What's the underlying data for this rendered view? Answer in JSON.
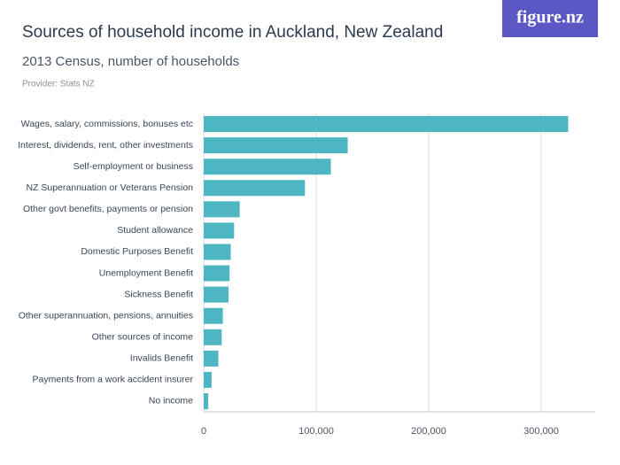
{
  "chart_data": {
    "type": "hbar",
    "title": "Sources of household income in Auckland, New Zealand",
    "subtitle": "2013 Census, number of households",
    "provider": "Provider: Stats NZ",
    "logo": "figure.nz",
    "categories": [
      "Wages, salary, commissions, bonuses etc",
      "Interest, dividends, rent, other investments",
      "Self-employment or business",
      "NZ Superannuation or Veterans Pension",
      "Other govt benefits, payments or pension",
      "Student allowance",
      "Domestic Purposes Benefit",
      "Unemployment Benefit",
      "Sickness Benefit",
      "Other superannuation, pensions, annuities",
      "Other sources of income",
      "Invalids Benefit",
      "Payments from a work accident insurer",
      "No income"
    ],
    "values": [
      324000,
      128000,
      113000,
      90000,
      32000,
      27000,
      24000,
      23000,
      22000,
      17000,
      16000,
      13000,
      7000,
      4000
    ],
    "color": "#4db6c2",
    "xlim": [
      0,
      348000
    ],
    "xticks": [
      0,
      {
        "value": 100000,
        "label": "100,000"
      },
      {
        "value": 200000,
        "label": "200,000"
      },
      {
        "value": 300000,
        "label": "300,000"
      }
    ],
    "grid": true
  }
}
